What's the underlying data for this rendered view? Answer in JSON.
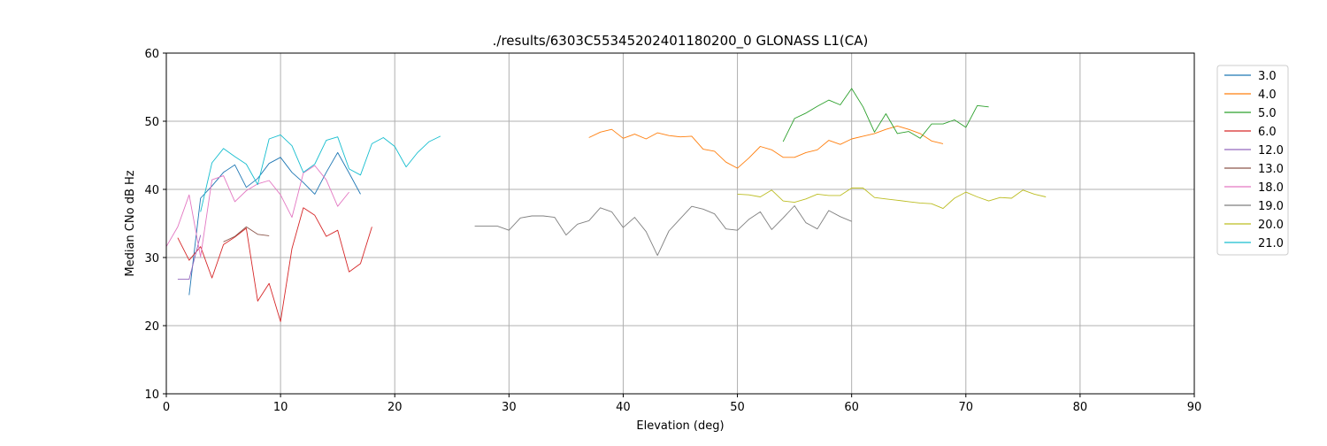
{
  "chart_data": {
    "type": "line",
    "title": "./results/6303C55345202401180200_0 GLONASS L1(CA)",
    "xlabel": "Elevation (deg)",
    "ylabel": "Median CNo dB Hz",
    "xlim": [
      0,
      90
    ],
    "ylim": [
      10,
      60
    ],
    "xticks": [
      0,
      10,
      20,
      30,
      40,
      50,
      60,
      70,
      80,
      90
    ],
    "yticks": [
      10,
      20,
      30,
      40,
      50,
      60
    ],
    "grid": true,
    "legend_position": "right, outside plot",
    "series": [
      {
        "name": "3.0",
        "color": "#1f77b4",
        "x": [
          2,
          3,
          4,
          5,
          6,
          7,
          8,
          9,
          10,
          11,
          12,
          13,
          14,
          15,
          16,
          17
        ],
        "y": [
          24.5,
          38.7,
          40.5,
          42.5,
          43.6,
          40.3,
          41.6,
          43.8,
          44.7,
          42.5,
          41.0,
          39.3,
          42.5,
          45.4,
          42.4,
          39.3
        ]
      },
      {
        "name": "4.0",
        "color": "#ff7f0e",
        "x": [
          37,
          38,
          39,
          40,
          41,
          42,
          43,
          44,
          45,
          46,
          47,
          48,
          49,
          50,
          51,
          52,
          53,
          54,
          55,
          56,
          57,
          58,
          59,
          60,
          61,
          62,
          63,
          64,
          65,
          66,
          67,
          68
        ],
        "y": [
          47.6,
          48.4,
          48.8,
          47.5,
          48.1,
          47.4,
          48.3,
          47.9,
          47.7,
          47.8,
          45.9,
          45.6,
          44.0,
          43.1,
          44.6,
          46.3,
          45.8,
          44.7,
          44.7,
          45.4,
          45.8,
          47.2,
          46.6,
          47.4,
          47.8,
          48.2,
          48.8,
          49.3,
          48.8,
          48.2,
          47.1,
          46.7
        ]
      },
      {
        "name": "5.0",
        "color": "#2ca02c",
        "x": [
          54,
          55,
          56,
          57,
          58,
          59,
          60,
          61,
          62,
          63,
          64,
          65,
          66,
          67,
          68,
          69,
          70,
          71,
          72
        ],
        "y": [
          47.0,
          50.4,
          51.2,
          52.2,
          53.1,
          52.4,
          54.8,
          52.1,
          48.4,
          51.1,
          48.2,
          48.5,
          47.5,
          49.6,
          49.6,
          50.2,
          49.1,
          52.3,
          52.1
        ]
      },
      {
        "name": "6.0",
        "color": "#d62728",
        "x": [
          1,
          2,
          3,
          4,
          5,
          6,
          7,
          8,
          9,
          10,
          11,
          12,
          13,
          14,
          15,
          16,
          17,
          18
        ],
        "y": [
          32.9,
          29.6,
          31.6,
          27.0,
          31.9,
          33.0,
          34.3,
          23.6,
          26.2,
          20.6,
          31.3,
          37.3,
          36.2,
          33.1,
          34.0,
          27.9,
          29.1,
          34.5
        ]
      },
      {
        "name": "12.0",
        "color": "#9467bd",
        "x": [
          1,
          2,
          3
        ],
        "y": [
          26.8,
          26.8,
          33.3
        ]
      },
      {
        "name": "13.0",
        "color": "#8c564b",
        "x": [
          5,
          6,
          7,
          8,
          9
        ],
        "y": [
          32.3,
          33.1,
          34.5,
          33.4,
          33.2
        ]
      },
      {
        "name": "18.0",
        "color": "#e377c2",
        "x": [
          0,
          1,
          2,
          3,
          4,
          5,
          6,
          7,
          8,
          9,
          10,
          11,
          12,
          13,
          14,
          15,
          16
        ],
        "y": [
          31.6,
          34.5,
          39.2,
          30.1,
          41.4,
          42.0,
          38.2,
          39.8,
          40.8,
          41.3,
          39.2,
          35.9,
          42.4,
          43.5,
          41.4,
          37.5,
          39.6
        ]
      },
      {
        "name": "19.0",
        "color": "#7f7f7f",
        "x": [
          27,
          28,
          29,
          30,
          31,
          32,
          33,
          34,
          35,
          36,
          37,
          38,
          39,
          40,
          41,
          42,
          43,
          44,
          45,
          46,
          47,
          48,
          49,
          50,
          51,
          52,
          53,
          54,
          55,
          56,
          57,
          58,
          59,
          60
        ],
        "y": [
          34.6,
          34.6,
          34.6,
          34.0,
          35.8,
          36.1,
          36.1,
          35.9,
          33.3,
          34.9,
          35.4,
          37.3,
          36.7,
          34.4,
          35.9,
          33.8,
          30.3,
          33.9,
          35.7,
          37.5,
          37.1,
          36.4,
          34.2,
          34.0,
          35.6,
          36.7,
          34.1,
          35.8,
          37.6,
          35.1,
          34.2,
          36.9,
          36.0,
          35.3
        ]
      },
      {
        "name": "20.0",
        "color": "#bcbd22",
        "x": [
          50,
          51,
          52,
          53,
          54,
          55,
          56,
          57,
          58,
          59,
          60,
          61,
          62,
          63,
          64,
          65,
          66,
          67,
          68,
          69,
          70,
          71,
          72,
          73,
          74,
          75,
          76,
          77
        ],
        "y": [
          39.3,
          39.2,
          38.9,
          39.9,
          38.3,
          38.1,
          38.6,
          39.3,
          39.1,
          39.1,
          40.2,
          40.2,
          38.8,
          38.6,
          38.4,
          38.2,
          38.0,
          37.9,
          37.2,
          38.7,
          39.6,
          38.9,
          38.3,
          38.8,
          38.7,
          39.9,
          39.3,
          38.9
        ]
      },
      {
        "name": "21.0",
        "color": "#17becf",
        "x": [
          3,
          4,
          5,
          6,
          7,
          8,
          9,
          10,
          11,
          12,
          13,
          14,
          15,
          16,
          17,
          18,
          19,
          20,
          21,
          22,
          23,
          24
        ],
        "y": [
          36.7,
          43.9,
          46.0,
          44.8,
          43.7,
          40.7,
          47.4,
          48.0,
          46.4,
          42.5,
          43.7,
          47.2,
          47.7,
          43.0,
          42.1,
          46.7,
          47.6,
          46.3,
          43.3,
          45.4,
          47.0,
          47.8
        ]
      }
    ]
  }
}
